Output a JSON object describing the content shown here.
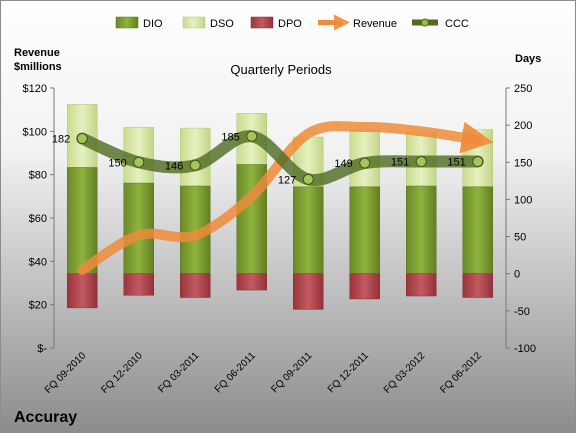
{
  "chart_data": {
    "type": "bar",
    "title": "Quarterly Periods",
    "company": "Accuray",
    "left_axis_title_line1": "Revenue",
    "left_axis_title_line2": "$millions",
    "right_axis_title": "Days",
    "categories": [
      "FQ 09-2010",
      "FQ 12-2010",
      "FQ 03-2011",
      "FQ 06-2011",
      "FQ 09-2011",
      "FQ 12-2011",
      "FQ 03-2012",
      "FQ 06-2012"
    ],
    "left_axis": {
      "min": 0,
      "max": 120,
      "step": 20,
      "tick_labels": [
        "$-",
        "$20",
        "$40",
        "$60",
        "$80",
        "$100",
        "$120"
      ]
    },
    "right_axis": {
      "min": -100,
      "max": 250,
      "step": 50,
      "tick_labels": [
        "-100",
        "-50",
        "0",
        "50",
        "100",
        "150",
        "200",
        "250"
      ]
    },
    "series": [
      {
        "name": "DIO",
        "axis": "right",
        "values": [
          143,
          122,
          118,
          147,
          117,
          117,
          118,
          117
        ]
      },
      {
        "name": "DSO",
        "axis": "right",
        "values": [
          85,
          75,
          78,
          69,
          67,
          77,
          73,
          77
        ]
      },
      {
        "name": "DPO",
        "axis": "right",
        "values": [
          -46,
          -29,
          -32,
          -22,
          -48,
          -34,
          -30,
          -32
        ]
      },
      {
        "name": "Revenue",
        "axis": "left",
        "values": [
          36,
          52,
          52,
          70,
          99,
          102,
          100,
          96
        ]
      },
      {
        "name": "CCC",
        "axis": "right",
        "values": [
          182,
          150,
          146,
          185,
          127,
          149,
          151,
          151
        ]
      }
    ],
    "ccc_labels": [
      "182",
      "150",
      "146",
      "185",
      "127",
      "149",
      "151",
      "151"
    ],
    "legend": {
      "placement": "top",
      "items": [
        "DIO",
        "DSO",
        "DPO",
        "Revenue",
        "CCC"
      ]
    },
    "colors": {
      "dio": "#7a9b2e",
      "dso": "#d7e7a6",
      "dpo": "#b2454b",
      "revenue": "#ef8b3a",
      "ccc": "#4f6b22",
      "bg_top": "#ffffff",
      "bg_bottom": "#8f8f8f"
    },
    "grid": false
  }
}
